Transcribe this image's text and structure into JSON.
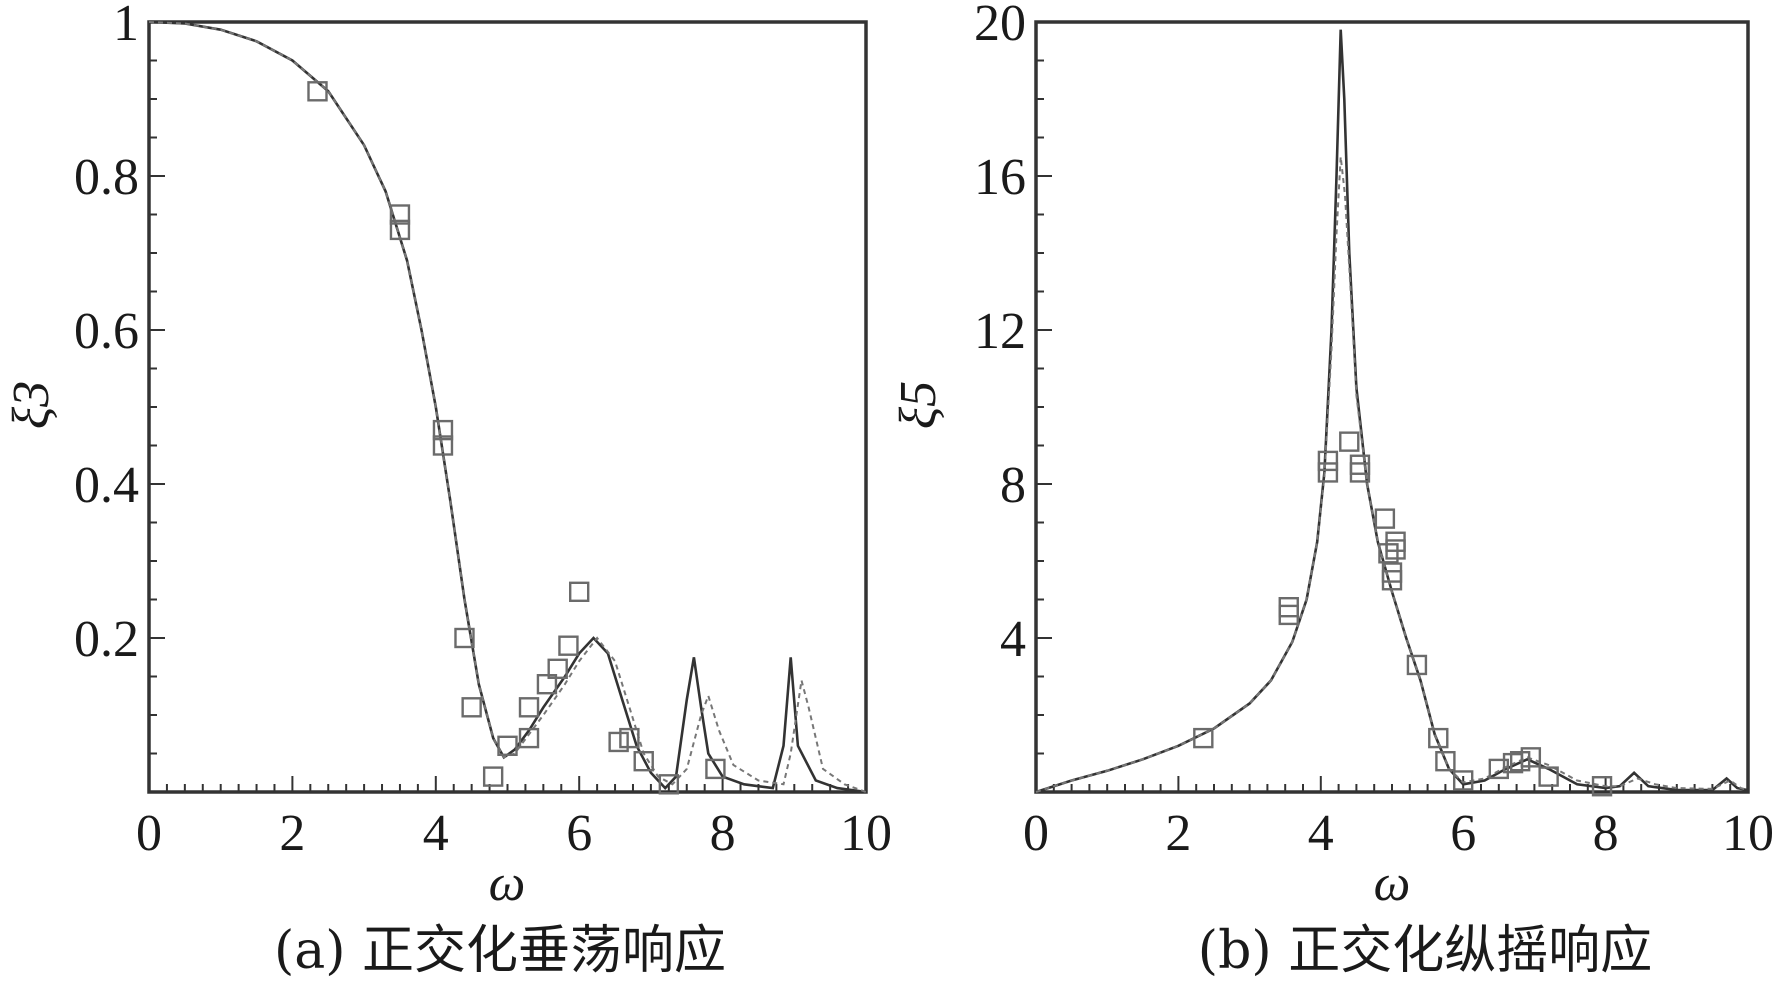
{
  "chart_data": [
    {
      "type": "line",
      "caption": "(a) 正交化垂荡响应",
      "xlabel": "ω",
      "ylabel": "ξ3",
      "xlim": [
        0,
        10
      ],
      "ylim": [
        0,
        1
      ],
      "x_ticks": [
        "0",
        "2",
        "4",
        "6",
        "8",
        "10"
      ],
      "y_ticks": [
        "0.2",
        "0.4",
        "0.6",
        "0.8",
        "1"
      ],
      "y_tick_values": [
        0.2,
        0.4,
        0.6,
        0.8,
        1.0
      ],
      "grid": false,
      "series": [
        {
          "style": "solid",
          "points": [
            [
              0,
              1.0
            ],
            [
              0.5,
              0.998
            ],
            [
              1,
              0.99
            ],
            [
              1.5,
              0.975
            ],
            [
              2,
              0.95
            ],
            [
              2.5,
              0.91
            ],
            [
              3,
              0.84
            ],
            [
              3.3,
              0.78
            ],
            [
              3.6,
              0.69
            ],
            [
              3.8,
              0.6
            ],
            [
              4.0,
              0.5
            ],
            [
              4.2,
              0.38
            ],
            [
              4.4,
              0.25
            ],
            [
              4.6,
              0.14
            ],
            [
              4.8,
              0.07
            ],
            [
              4.95,
              0.045
            ],
            [
              5.1,
              0.055
            ],
            [
              5.3,
              0.08
            ],
            [
              5.5,
              0.11
            ],
            [
              5.8,
              0.15
            ],
            [
              6.0,
              0.18
            ],
            [
              6.2,
              0.2
            ],
            [
              6.4,
              0.18
            ],
            [
              6.6,
              0.12
            ],
            [
              6.8,
              0.06
            ],
            [
              7.0,
              0.025
            ],
            [
              7.2,
              0.005
            ],
            [
              7.35,
              0.02
            ],
            [
              7.5,
              0.12
            ],
            [
              7.6,
              0.175
            ],
            [
              7.7,
              0.11
            ],
            [
              7.8,
              0.05
            ],
            [
              8.0,
              0.02
            ],
            [
              8.3,
              0.01
            ],
            [
              8.7,
              0.005
            ],
            [
              8.85,
              0.06
            ],
            [
              8.95,
              0.175
            ],
            [
              9.05,
              0.06
            ],
            [
              9.3,
              0.015
            ],
            [
              9.6,
              0.005
            ],
            [
              10,
              0.0
            ]
          ]
        },
        {
          "style": "dashed",
          "points": [
            [
              0,
              1.0
            ],
            [
              0.5,
              0.998
            ],
            [
              1,
              0.99
            ],
            [
              1.5,
              0.975
            ],
            [
              2,
              0.95
            ],
            [
              2.5,
              0.91
            ],
            [
              3,
              0.84
            ],
            [
              3.3,
              0.78
            ],
            [
              3.6,
              0.69
            ],
            [
              3.8,
              0.6
            ],
            [
              4.0,
              0.5
            ],
            [
              4.2,
              0.38
            ],
            [
              4.4,
              0.25
            ],
            [
              4.6,
              0.14
            ],
            [
              4.8,
              0.07
            ],
            [
              4.95,
              0.045
            ],
            [
              5.1,
              0.05
            ],
            [
              5.3,
              0.075
            ],
            [
              5.5,
              0.1
            ],
            [
              5.8,
              0.14
            ],
            [
              6.0,
              0.17
            ],
            [
              6.25,
              0.2
            ],
            [
              6.5,
              0.17
            ],
            [
              6.7,
              0.11
            ],
            [
              6.9,
              0.05
            ],
            [
              7.1,
              0.02
            ],
            [
              7.3,
              0.01
            ],
            [
              7.5,
              0.03
            ],
            [
              7.7,
              0.1
            ],
            [
              7.8,
              0.125
            ],
            [
              7.95,
              0.08
            ],
            [
              8.15,
              0.035
            ],
            [
              8.5,
              0.015
            ],
            [
              8.85,
              0.01
            ],
            [
              8.95,
              0.05
            ],
            [
              9.1,
              0.145
            ],
            [
              9.2,
              0.11
            ],
            [
              9.4,
              0.03
            ],
            [
              9.7,
              0.01
            ],
            [
              10,
              0.0
            ]
          ]
        },
        {
          "style": "markers",
          "points": [
            [
              2.35,
              0.91
            ],
            [
              3.5,
              0.73
            ],
            [
              3.5,
              0.75
            ],
            [
              4.1,
              0.45
            ],
            [
              4.1,
              0.47
            ],
            [
              4.4,
              0.2
            ],
            [
              4.5,
              0.11
            ],
            [
              4.8,
              0.02
            ],
            [
              5.0,
              0.06
            ],
            [
              5.3,
              0.07
            ],
            [
              5.3,
              0.11
            ],
            [
              5.55,
              0.14
            ],
            [
              5.7,
              0.16
            ],
            [
              5.85,
              0.19
            ],
            [
              6.0,
              0.26
            ],
            [
              6.55,
              0.065
            ],
            [
              6.7,
              0.07
            ],
            [
              6.9,
              0.04
            ],
            [
              7.25,
              0.01
            ],
            [
              7.9,
              0.03
            ]
          ]
        }
      ]
    },
    {
      "type": "line",
      "caption": "(b) 正交化纵摇响应",
      "xlabel": "ω",
      "ylabel": "ξ5",
      "xlim": [
        0,
        10
      ],
      "ylim": [
        0,
        20
      ],
      "x_ticks": [
        "0",
        "2",
        "4",
        "6",
        "8",
        "10"
      ],
      "y_ticks": [
        "4",
        "8",
        "12",
        "16",
        "20"
      ],
      "y_tick_values": [
        4,
        8,
        12,
        16,
        20
      ],
      "grid": false,
      "series": [
        {
          "style": "solid",
          "points": [
            [
              0,
              0.0
            ],
            [
              0.5,
              0.3
            ],
            [
              1,
              0.55
            ],
            [
              1.5,
              0.85
            ],
            [
              2,
              1.2
            ],
            [
              2.5,
              1.65
            ],
            [
              3,
              2.3
            ],
            [
              3.3,
              2.9
            ],
            [
              3.6,
              3.9
            ],
            [
              3.8,
              5.0
            ],
            [
              3.95,
              6.5
            ],
            [
              4.05,
              8.3
            ],
            [
              4.15,
              12.0
            ],
            [
              4.22,
              16.0
            ],
            [
              4.28,
              19.8
            ],
            [
              4.33,
              18.0
            ],
            [
              4.4,
              14.0
            ],
            [
              4.5,
              10.5
            ],
            [
              4.65,
              8.0
            ],
            [
              4.8,
              6.5
            ],
            [
              5.0,
              5.2
            ],
            [
              5.2,
              4.0
            ],
            [
              5.4,
              2.9
            ],
            [
              5.6,
              1.5
            ],
            [
              5.8,
              0.6
            ],
            [
              6.0,
              0.2
            ],
            [
              6.3,
              0.3
            ],
            [
              6.6,
              0.6
            ],
            [
              6.9,
              0.85
            ],
            [
              7.2,
              0.6
            ],
            [
              7.6,
              0.2
            ],
            [
              8.0,
              0.1
            ],
            [
              8.2,
              0.15
            ],
            [
              8.4,
              0.5
            ],
            [
              8.6,
              0.15
            ],
            [
              9.0,
              0.05
            ],
            [
              9.5,
              0.05
            ],
            [
              9.7,
              0.35
            ],
            [
              9.85,
              0.1
            ],
            [
              10,
              0.05
            ]
          ]
        },
        {
          "style": "dashed",
          "points": [
            [
              0,
              0.0
            ],
            [
              0.5,
              0.3
            ],
            [
              1,
              0.55
            ],
            [
              1.5,
              0.85
            ],
            [
              2,
              1.2
            ],
            [
              2.5,
              1.65
            ],
            [
              3,
              2.3
            ],
            [
              3.3,
              2.9
            ],
            [
              3.6,
              3.9
            ],
            [
              3.8,
              5.0
            ],
            [
              3.95,
              6.5
            ],
            [
              4.05,
              8.2
            ],
            [
              4.15,
              11.5
            ],
            [
              4.22,
              14.5
            ],
            [
              4.28,
              16.5
            ],
            [
              4.34,
              15.5
            ],
            [
              4.42,
              13.0
            ],
            [
              4.5,
              10.3
            ],
            [
              4.65,
              8.0
            ],
            [
              4.8,
              6.5
            ],
            [
              5.0,
              5.2
            ],
            [
              5.2,
              4.0
            ],
            [
              5.4,
              2.9
            ],
            [
              5.6,
              1.5
            ],
            [
              5.8,
              0.6
            ],
            [
              6.0,
              0.25
            ],
            [
              6.3,
              0.35
            ],
            [
              6.6,
              0.65
            ],
            [
              6.9,
              0.9
            ],
            [
              7.2,
              0.7
            ],
            [
              7.6,
              0.3
            ],
            [
              8.0,
              0.15
            ],
            [
              8.2,
              0.15
            ],
            [
              8.45,
              0.35
            ],
            [
              8.7,
              0.2
            ],
            [
              9.0,
              0.1
            ],
            [
              9.5,
              0.08
            ],
            [
              9.75,
              0.3
            ],
            [
              9.9,
              0.1
            ],
            [
              10,
              0.05
            ]
          ]
        },
        {
          "style": "markers",
          "points": [
            [
              2.35,
              1.4
            ],
            [
              3.55,
              4.6
            ],
            [
              3.55,
              4.8
            ],
            [
              4.1,
              8.3
            ],
            [
              4.1,
              8.6
            ],
            [
              4.4,
              9.1
            ],
            [
              4.55,
              8.3
            ],
            [
              4.55,
              8.5
            ],
            [
              4.9,
              7.1
            ],
            [
              4.95,
              6.2
            ],
            [
              5.0,
              5.5
            ],
            [
              5.0,
              5.7
            ],
            [
              5.05,
              6.3
            ],
            [
              5.05,
              6.5
            ],
            [
              5.35,
              3.3
            ],
            [
              5.65,
              1.4
            ],
            [
              5.75,
              0.8
            ],
            [
              6.0,
              0.3
            ],
            [
              6.5,
              0.6
            ],
            [
              6.7,
              0.75
            ],
            [
              6.8,
              0.8
            ],
            [
              6.95,
              0.9
            ],
            [
              7.2,
              0.4
            ],
            [
              7.95,
              0.15
            ]
          ]
        }
      ]
    }
  ]
}
